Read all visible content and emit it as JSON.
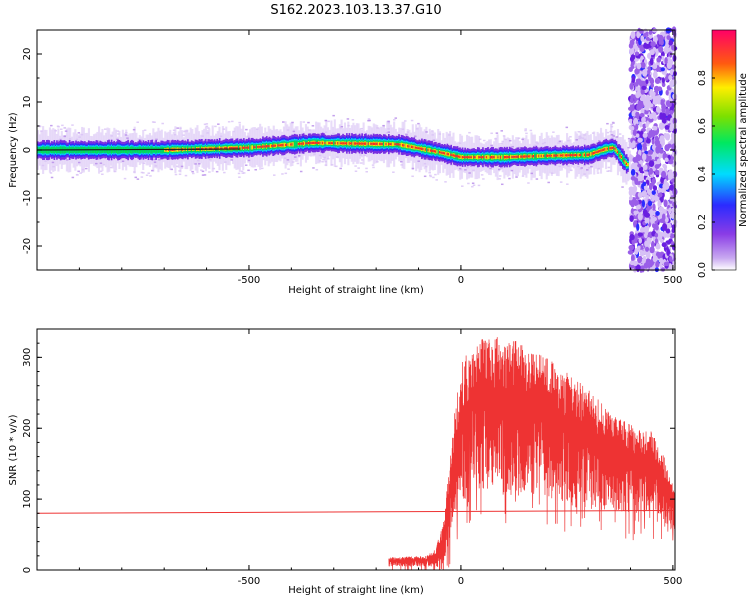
{
  "figure_title": "S162.2023.103.13.37.G10",
  "chart_data": [
    {
      "type": "heatmap",
      "title": "S162.2023.103.13.37.G10",
      "xlabel": "Height of straight line (km)",
      "ylabel": "Frequency (Hz)",
      "xlim": [
        -1000,
        505
      ],
      "ylim": [
        -25,
        25
      ],
      "x_ticks": [
        -500,
        0,
        500
      ],
      "x_tick_labels": [
        "-500",
        "0",
        "500"
      ],
      "y_ticks": [
        20,
        10,
        0,
        -10,
        -20
      ],
      "y_tick_labels": [
        "20",
        "10",
        "0",
        "-10",
        "-20"
      ],
      "colorbar": {
        "label": "Normalized spectral amplitude",
        "range": [
          0,
          1
        ],
        "ticks": [
          0.0,
          0.2,
          0.4,
          0.6,
          0.8
        ],
        "tick_labels": [
          "0.0",
          "0.2",
          "0.4",
          "0.6",
          "0.8"
        ],
        "colormap": "rainbow (purple-blue-cyan-green-yellow-red-magenta)"
      },
      "ridge": [
        {
          "x": -1000,
          "f": 0.0
        },
        {
          "x": -700,
          "f": 0.0
        },
        {
          "x": -500,
          "f": 0.5
        },
        {
          "x": -350,
          "f": 1.5
        },
        {
          "x": -150,
          "f": 1.2
        },
        {
          "x": -50,
          "f": -0.5
        },
        {
          "x": 0,
          "f": -1.5
        },
        {
          "x": 100,
          "f": -1.5
        },
        {
          "x": 200,
          "f": -1.2
        },
        {
          "x": 300,
          "f": -1.0
        },
        {
          "x": 340,
          "f": 0.2
        },
        {
          "x": 360,
          "f": 0.5
        },
        {
          "x": 390,
          "f": -3.0
        },
        {
          "x": 410,
          "f": -3.5
        }
      ],
      "noise_region_x": [
        400,
        505
      ],
      "grid": false
    },
    {
      "type": "line",
      "xlabel": "Height of straight line (km)",
      "ylabel": "SNR (10 * v/v)",
      "xlim": [
        -1000,
        505
      ],
      "ylim": [
        0,
        340
      ],
      "x_ticks": [
        -500,
        0,
        500
      ],
      "x_tick_labels": [
        "-500",
        "0",
        "500"
      ],
      "y_ticks": [
        0,
        100,
        200,
        300
      ],
      "y_tick_labels": [
        "0",
        "100",
        "200",
        "300"
      ],
      "series_color": "#ee3333",
      "baseline": {
        "x": [
          -1000,
          505
        ],
        "y": [
          80,
          84
        ]
      },
      "envelope_upper": [
        {
          "x": -170,
          "y": 18
        },
        {
          "x": -80,
          "y": 20
        },
        {
          "x": -60,
          "y": 30
        },
        {
          "x": -40,
          "y": 70
        },
        {
          "x": -20,
          "y": 200
        },
        {
          "x": 0,
          "y": 290
        },
        {
          "x": 30,
          "y": 325
        },
        {
          "x": 60,
          "y": 330
        },
        {
          "x": 120,
          "y": 328
        },
        {
          "x": 160,
          "y": 310
        },
        {
          "x": 200,
          "y": 300
        },
        {
          "x": 250,
          "y": 280
        },
        {
          "x": 300,
          "y": 255
        },
        {
          "x": 350,
          "y": 225
        },
        {
          "x": 400,
          "y": 205
        },
        {
          "x": 450,
          "y": 195
        },
        {
          "x": 480,
          "y": 160
        },
        {
          "x": 505,
          "y": 110
        }
      ],
      "envelope_lower": [
        {
          "x": -170,
          "y": 5
        },
        {
          "x": -80,
          "y": 5
        },
        {
          "x": -60,
          "y": 2
        },
        {
          "x": -40,
          "y": 10
        },
        {
          "x": -20,
          "y": 60
        },
        {
          "x": 0,
          "y": 95
        },
        {
          "x": 30,
          "y": 110
        },
        {
          "x": 60,
          "y": 115
        },
        {
          "x": 120,
          "y": 100
        },
        {
          "x": 160,
          "y": 110
        },
        {
          "x": 200,
          "y": 105
        },
        {
          "x": 250,
          "y": 90
        },
        {
          "x": 300,
          "y": 85
        },
        {
          "x": 350,
          "y": 85
        },
        {
          "x": 400,
          "y": 80
        },
        {
          "x": 450,
          "y": 80
        },
        {
          "x": 480,
          "y": 70
        },
        {
          "x": 505,
          "y": 40
        }
      ],
      "grid": false
    }
  ]
}
